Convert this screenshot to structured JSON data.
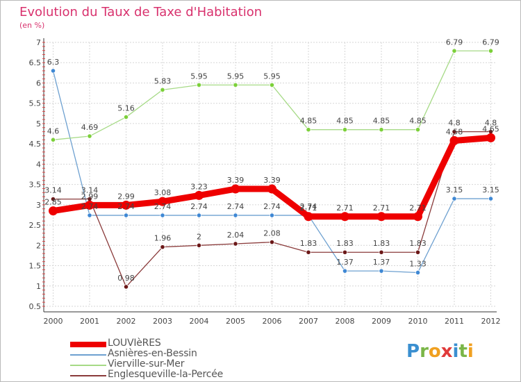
{
  "header": {
    "title": "Evolution du Taux de Taxe d'Habitation",
    "unit": "(en %)"
  },
  "logo": {
    "text": "Proxiti",
    "letters": [
      "P",
      "r",
      "o",
      "x",
      "i",
      "t",
      "i"
    ],
    "colors": [
      "#3a8fd0",
      "#7ab648",
      "#f0a020",
      "#e03a3a",
      "#3a8fd0",
      "#7ab648",
      "#f0a020"
    ]
  },
  "chart_data": {
    "type": "line",
    "x": [
      "2000",
      "2001",
      "2002",
      "2003",
      "2004",
      "2005",
      "2006",
      "2007",
      "2008",
      "2009",
      "2010",
      "2011",
      "2012"
    ],
    "ylim": [
      0.5,
      7
    ],
    "yticks": [
      "0.5",
      "1",
      "1.5",
      "2",
      "2.5",
      "3",
      "3.5",
      "4",
      "4.5",
      "5",
      "5.5",
      "6",
      "6.5",
      "7"
    ],
    "grid": true,
    "legend_position": "bottom-left",
    "series": [
      {
        "name": "LOUVIèRES",
        "color": "#ee0000",
        "width": "thick",
        "values": [
          2.85,
          2.99,
          2.99,
          3.08,
          3.23,
          3.39,
          3.39,
          2.71,
          2.71,
          2.71,
          2.71,
          4.58,
          4.65
        ],
        "labels": [
          "2.85",
          "2.99",
          "2.99",
          "3.08",
          "3.23",
          "3.39",
          "3.39",
          "2.71",
          "2.71",
          "2.71",
          "2.71",
          "4.58",
          "4.65"
        ]
      },
      {
        "name": "Asnières-en-Bessin",
        "color": "#6da0d0",
        "width": "thin",
        "marker": "#3f88d4",
        "values": [
          6.3,
          2.74,
          2.74,
          2.74,
          2.74,
          2.74,
          2.74,
          2.74,
          1.37,
          1.37,
          1.33,
          3.15,
          3.15
        ],
        "labels": [
          "6.3",
          "2.74",
          "2.74",
          "2.74",
          "2.74",
          "2.74",
          "2.74",
          "2.74",
          "1.37",
          "1.37",
          "1.33",
          "3.15",
          "3.15"
        ]
      },
      {
        "name": "Vierville-sur-Mer",
        "color": "#a6da86",
        "width": "thin",
        "marker": "#7cd03a",
        "values": [
          4.6,
          4.69,
          5.16,
          5.83,
          5.95,
          5.95,
          5.95,
          4.85,
          4.85,
          4.85,
          4.85,
          6.79,
          6.79
        ],
        "labels": [
          "4.6",
          "4.69",
          "5.16",
          "5.83",
          "5.95",
          "5.95",
          "5.95",
          "4.85",
          "4.85",
          "4.85",
          "4.85",
          "6.79",
          "6.79"
        ]
      },
      {
        "name": "Englesqueville-la-Percée",
        "color": "#8a3a3a",
        "width": "thin",
        "marker": "#6b1818",
        "values": [
          3.14,
          3.14,
          0.98,
          1.96,
          2.0,
          2.04,
          2.08,
          1.83,
          1.83,
          1.83,
          1.83,
          4.8,
          4.8
        ],
        "labels": [
          "3.14",
          "3.14",
          "0.98",
          "1.96",
          "2",
          "2.04",
          "2.08",
          "1.83",
          "1.83",
          "1.83",
          "1.83",
          "4.8",
          "4.8"
        ]
      }
    ]
  }
}
